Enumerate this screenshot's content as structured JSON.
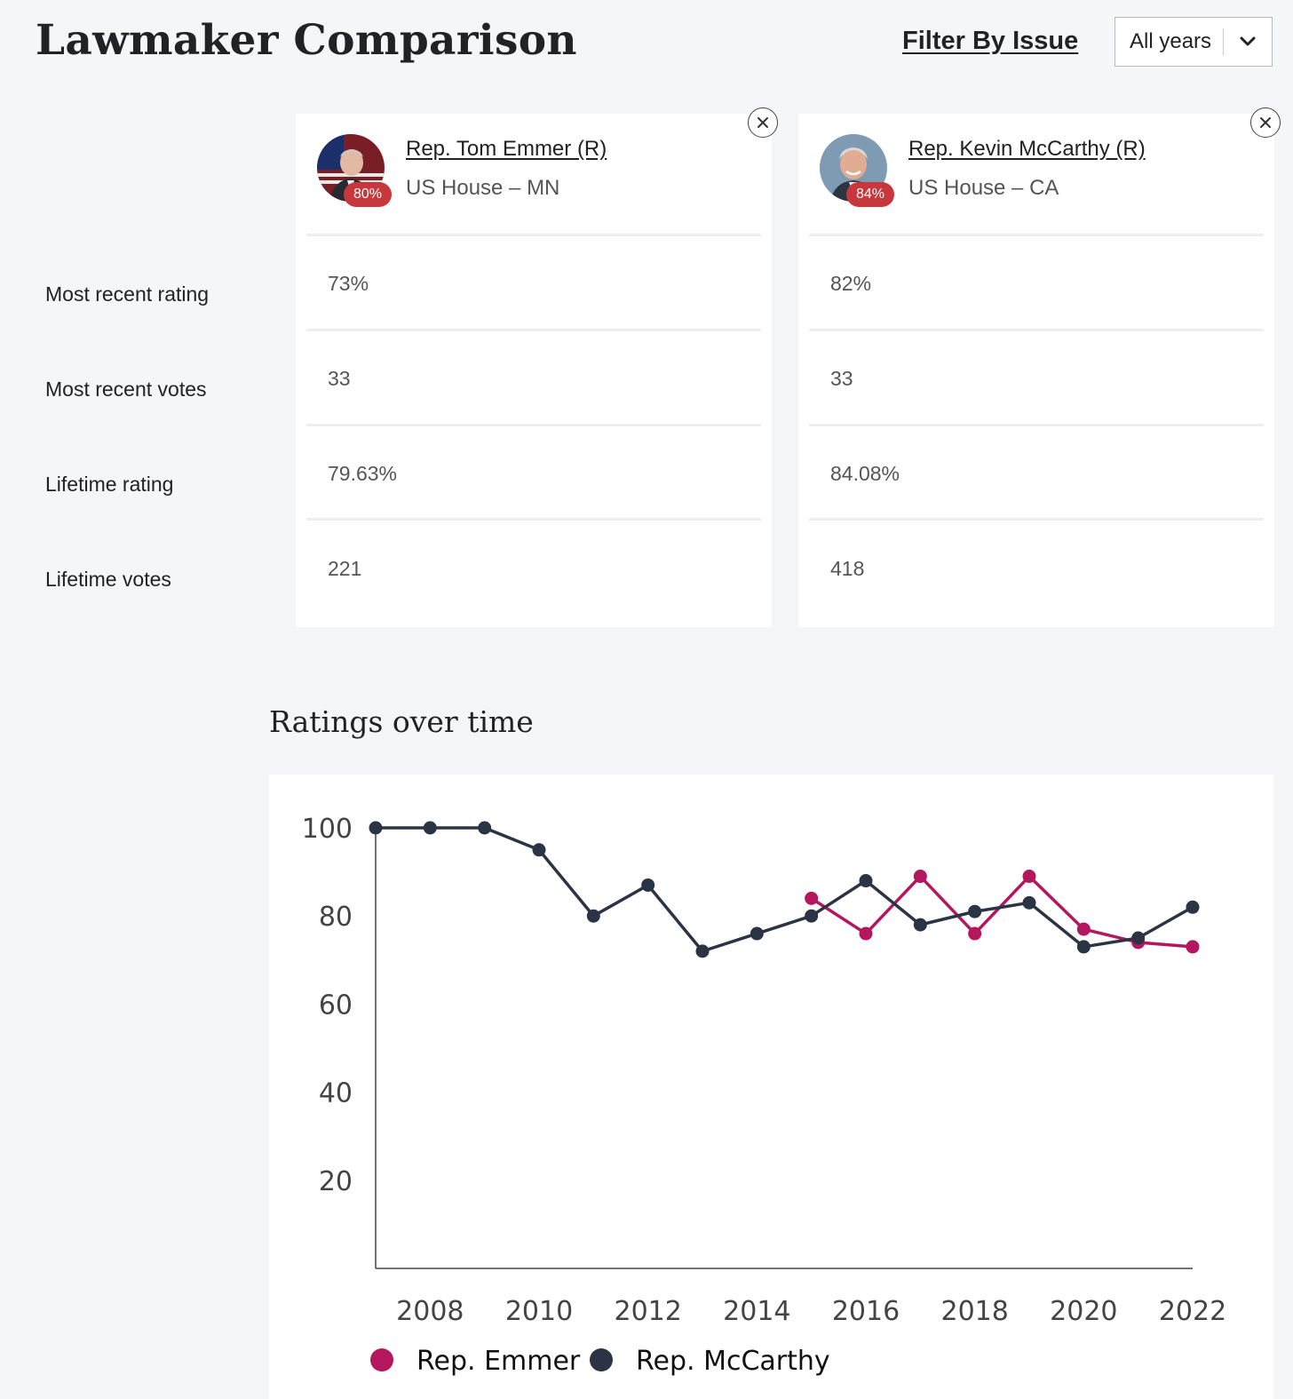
{
  "header": {
    "title": "Lawmaker Comparison",
    "filter_label": "Filter By Issue",
    "year_select": {
      "value": "All years"
    }
  },
  "row_labels": [
    "Most recent rating",
    "Most recent votes",
    "Lifetime rating",
    "Lifetime votes"
  ],
  "lawmakers": [
    {
      "name": "Rep. Tom Emmer (R)",
      "office": "US House – MN",
      "badge": "80%",
      "stats": [
        "73%",
        "33",
        "79.63%",
        "221"
      ]
    },
    {
      "name": "Rep. Kevin McCarthy (R)",
      "office": "US House – CA",
      "badge": "84%",
      "stats": [
        "82%",
        "33",
        "84.08%",
        "418"
      ]
    }
  ],
  "chart_heading": "Ratings over time",
  "colors": {
    "emmer": "#b5175f",
    "mccarthy": "#2b3445",
    "badge": "#c8373b"
  },
  "chart_data": {
    "type": "line",
    "title": "Ratings over time",
    "xlabel": "",
    "ylabel": "",
    "ylim": [
      0,
      100
    ],
    "xlim": [
      2007,
      2022
    ],
    "x_ticks": [
      "2008",
      "2010",
      "2012",
      "2014",
      "2016",
      "2018",
      "2020",
      "2022"
    ],
    "y_ticks": [
      "20",
      "40",
      "60",
      "80",
      "100"
    ],
    "legend_position": "bottom",
    "grid": false,
    "series": [
      {
        "name": "Rep. Emmer",
        "x": [
          2015,
          2016,
          2017,
          2018,
          2019,
          2020,
          2021,
          2022
        ],
        "values": [
          84,
          76,
          89,
          76,
          89,
          77,
          74,
          73
        ]
      },
      {
        "name": "Rep. McCarthy",
        "x": [
          2007,
          2008,
          2009,
          2010,
          2011,
          2012,
          2013,
          2014,
          2015,
          2016,
          2017,
          2018,
          2019,
          2020,
          2021,
          2022
        ],
        "values": [
          100,
          100,
          100,
          95,
          80,
          87,
          72,
          76,
          80,
          88,
          78,
          81,
          83,
          73,
          75,
          82
        ]
      }
    ]
  }
}
